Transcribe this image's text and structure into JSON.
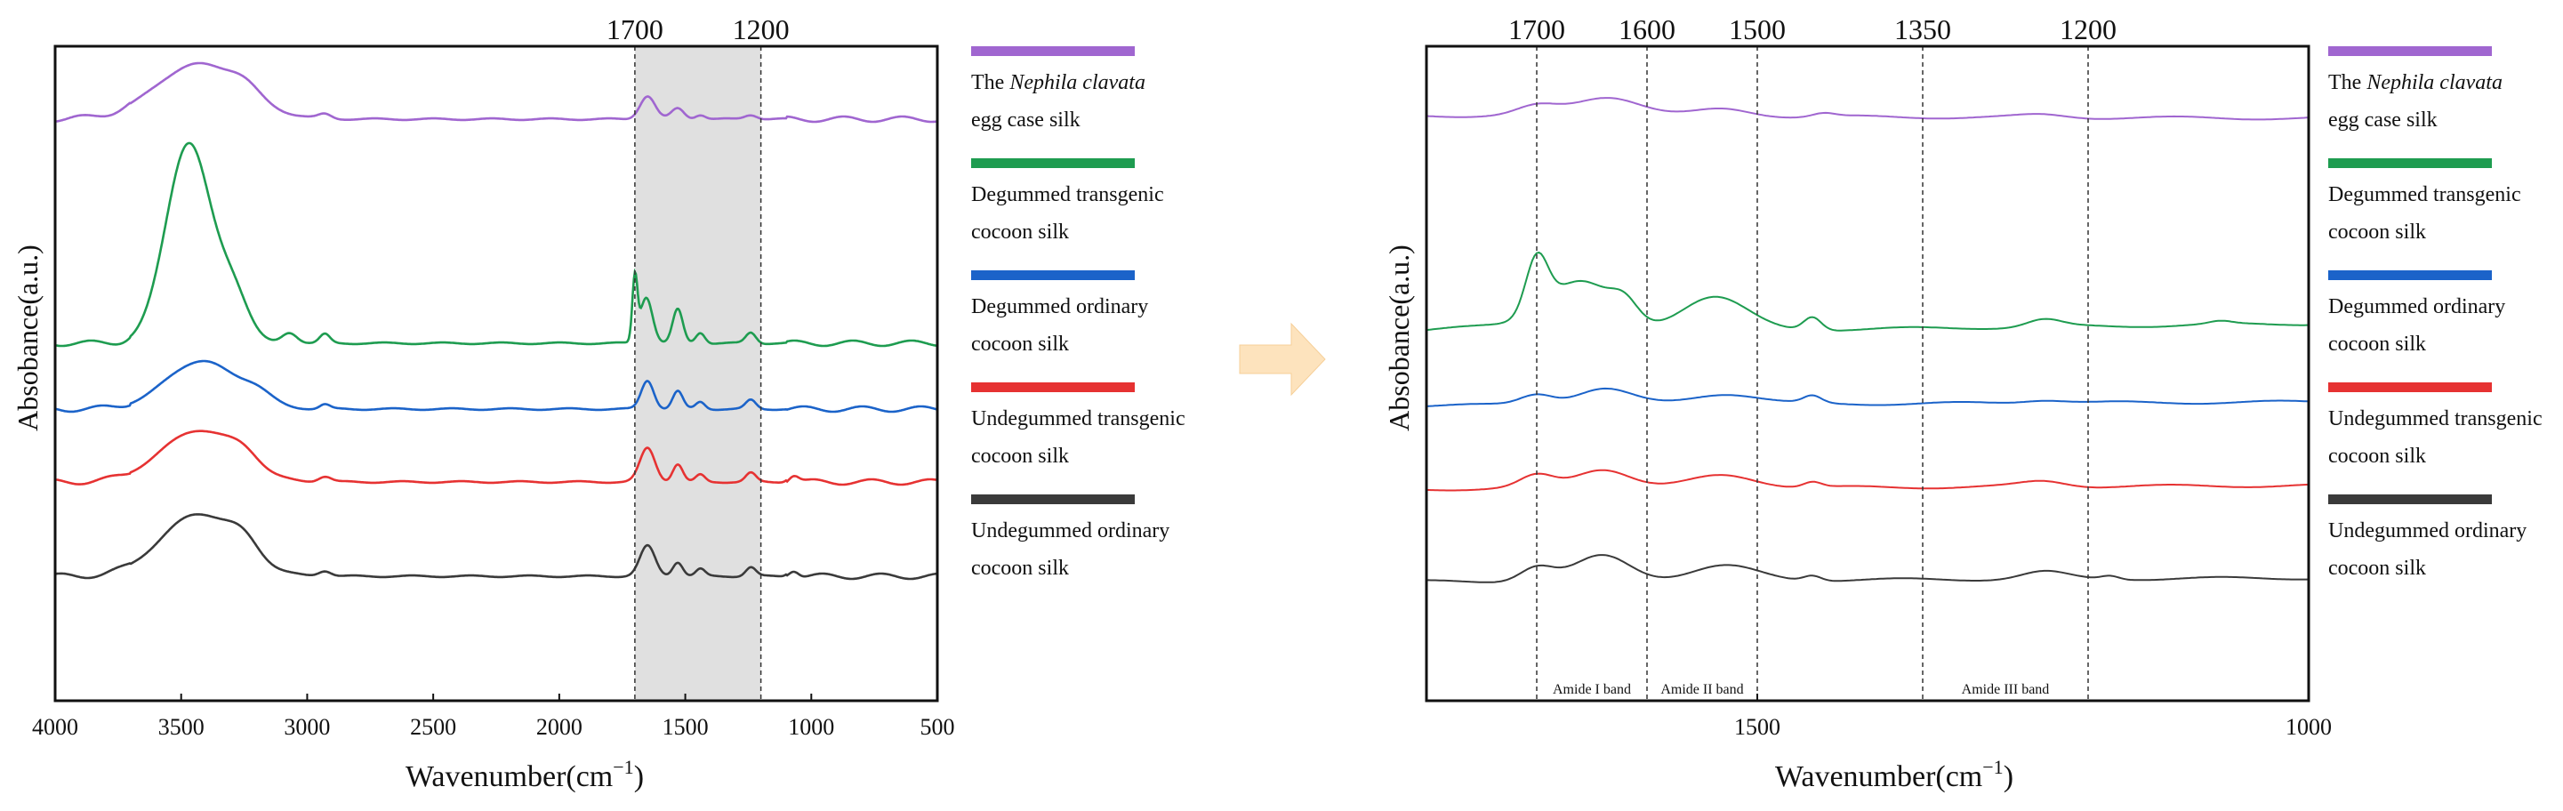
{
  "chart_data": [
    {
      "type": "line",
      "panel": "left",
      "xlabel_main": "Wavenumber(cm",
      "xlabel_sup": "−1",
      "xlabel_end": ")",
      "ylabel": "Absobance(a.u.)",
      "xlim": [
        4000,
        500
      ],
      "x_ticks": [
        "4000",
        "3500",
        "3000",
        "2500",
        "2000",
        "1500",
        "1000",
        "500"
      ],
      "top_labels": [
        {
          "x": 1700,
          "label": "1700"
        },
        {
          "x": 1200,
          "label": "1200"
        }
      ],
      "shaded_region": [
        1700,
        1200
      ],
      "series": [
        {
          "name": "The Nephila clavata egg case silk",
          "color": "#a066d0"
        },
        {
          "name": "Degummed transgenic cocoon silk",
          "color": "#1e9c50"
        },
        {
          "name": "Degummed ordinary cocoon silk",
          "color": "#1b63c9"
        },
        {
          "name": "Undegummed transgenic cocoon silk",
          "color": "#e63232"
        },
        {
          "name": "Undegummed ordinary cocoon silk",
          "color": "#3a3a3a"
        }
      ]
    },
    {
      "type": "line",
      "panel": "right",
      "xlabel_main": "Wavenumber(cm",
      "xlabel_sup": "−1",
      "xlabel_end": ")",
      "ylabel": "Absobance(a.u.)",
      "xlim": [
        1800,
        1000
      ],
      "x_ticks": [
        "1500",
        "1000"
      ],
      "top_labels": [
        {
          "x": 1700,
          "label": "1700"
        },
        {
          "x": 1600,
          "label": "1600"
        },
        {
          "x": 1500,
          "label": "1500"
        },
        {
          "x": 1350,
          "label": "1350"
        },
        {
          "x": 1200,
          "label": "1200"
        }
      ],
      "band_labels": [
        {
          "label": "Amide I band",
          "from": 1700,
          "to": 1600
        },
        {
          "label": "Amide II band",
          "from": 1600,
          "to": 1500
        },
        {
          "label": "Amide III band",
          "from": 1350,
          "to": 1200
        }
      ],
      "series": [
        {
          "name": "The Nephila clavata egg case silk",
          "color": "#a066d0"
        },
        {
          "name": "Degummed transgenic cocoon silk",
          "color": "#1e9c50"
        },
        {
          "name": "Degummed ordinary cocoon silk",
          "color": "#1b63c9"
        },
        {
          "name": "Undegummed transgenic cocoon silk",
          "color": "#e63232"
        },
        {
          "name": "Undegummed ordinary cocoon silk",
          "color": "#3a3a3a"
        }
      ]
    }
  ],
  "legend": {
    "entries": [
      {
        "line1_pre": "The ",
        "line1_em": "Nephila clavata",
        "line2": "egg case silk",
        "color": "#a066d0"
      },
      {
        "line1_pre": "Degummed transgenic",
        "line1_em": "",
        "line2": "cocoon silk",
        "color": "#1e9c50"
      },
      {
        "line1_pre": "Degummed ordinary",
        "line1_em": "",
        "line2": "cocoon silk",
        "color": "#1b63c9"
      },
      {
        "line1_pre": "Undegummed transgenic",
        "line1_em": "",
        "line2": "cocoon silk",
        "color": "#e63232"
      },
      {
        "line1_pre": "Undegummed ordinary",
        "line1_em": "",
        "line2": "cocoon silk",
        "color": "#3a3a3a"
      }
    ]
  },
  "arrow_color": "#fde3bd"
}
